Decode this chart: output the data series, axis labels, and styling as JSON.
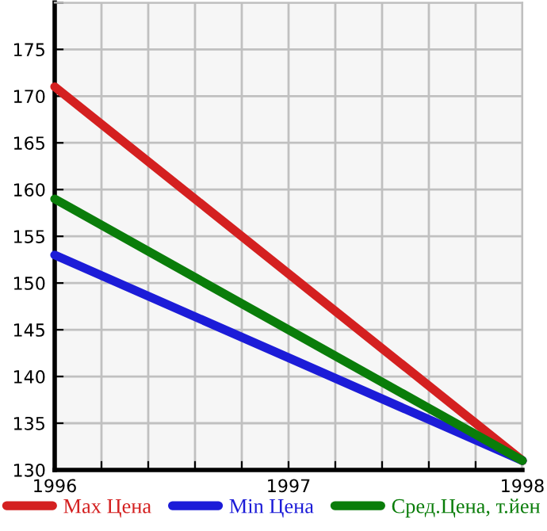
{
  "chart_data": {
    "type": "line",
    "x": [
      1996,
      1997,
      1998
    ],
    "series": [
      {
        "name": "Max Цена",
        "color": "#d42020",
        "values": [
          171,
          151,
          131
        ]
      },
      {
        "name": "Min Цена",
        "color": "#1c1cd8",
        "values": [
          153,
          142,
          131
        ]
      },
      {
        "name": "Сред.Цена, т.йен",
        "color": "#0a7d0a",
        "values": [
          159,
          145,
          131
        ]
      }
    ],
    "xlim": [
      1996,
      1998
    ],
    "xticks": [
      1996,
      {
        "value": 1996.2,
        "label": null
      },
      {
        "value": 1996.4,
        "label": null
      },
      {
        "value": 1996.6,
        "label": null
      },
      {
        "value": 1996.8,
        "label": null
      },
      1997,
      {
        "value": 1997.2,
        "label": null
      },
      {
        "value": 1997.4,
        "label": null
      },
      {
        "value": 1997.6,
        "label": null
      },
      {
        "value": 1997.8,
        "label": null
      },
      1998
    ],
    "ylim": [
      130,
      180
    ],
    "yticks": [
      130,
      135,
      140,
      145,
      150,
      155,
      160,
      165,
      170,
      175,
      {
        "value": 180,
        "label": null
      }
    ],
    "grid": true,
    "legend": "bottom",
    "marker": "none",
    "line_style": "solid"
  }
}
